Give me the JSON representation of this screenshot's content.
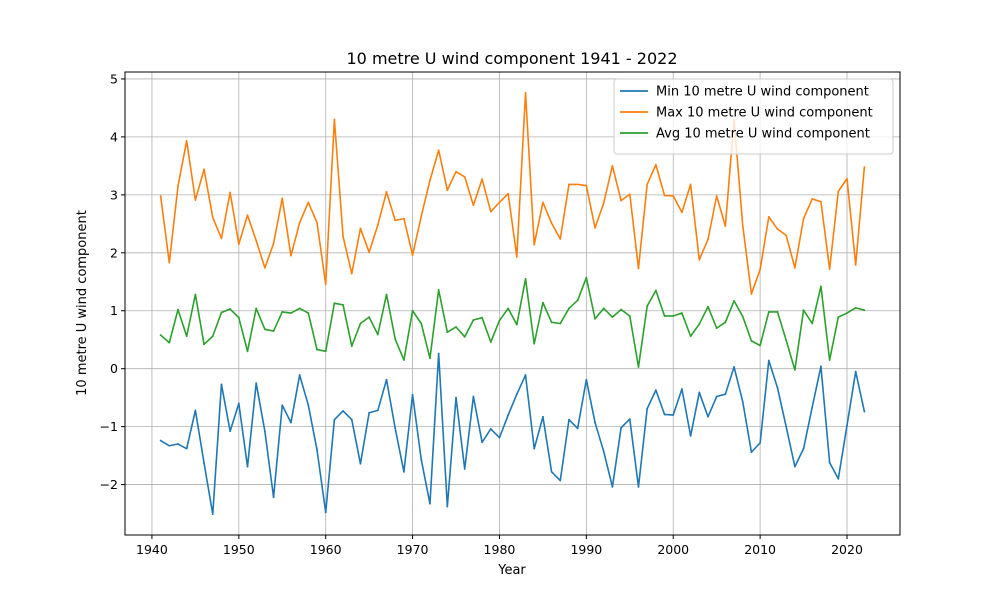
{
  "chart_data": {
    "type": "line",
    "title": "10 metre U wind component 1941 - 2022",
    "xlabel": "Year",
    "ylabel": "10 metre U wind component",
    "xlim": [
      1936.9,
      2026.1
    ],
    "ylim": [
      -2.87,
      5.12
    ],
    "x_ticks": [
      1940,
      1950,
      1960,
      1970,
      1980,
      1990,
      2000,
      2010,
      2020
    ],
    "y_ticks": [
      -2,
      -1,
      0,
      1,
      2,
      3,
      4,
      5
    ],
    "y_tick_labels": [
      "−2",
      "−1",
      "0",
      "1",
      "2",
      "3",
      "4",
      "5"
    ],
    "grid": true,
    "legend_position": "top-right",
    "x": [
      1941,
      1942,
      1943,
      1944,
      1945,
      1946,
      1947,
      1948,
      1949,
      1950,
      1951,
      1952,
      1953,
      1954,
      1955,
      1956,
      1957,
      1958,
      1959,
      1960,
      1961,
      1962,
      1963,
      1964,
      1965,
      1966,
      1967,
      1968,
      1969,
      1970,
      1971,
      1972,
      1973,
      1974,
      1975,
      1976,
      1977,
      1978,
      1979,
      1980,
      1981,
      1982,
      1983,
      1984,
      1985,
      1986,
      1987,
      1988,
      1989,
      1990,
      1991,
      1992,
      1993,
      1994,
      1995,
      1996,
      1997,
      1998,
      1999,
      2000,
      2001,
      2002,
      2003,
      2004,
      2005,
      2006,
      2007,
      2008,
      2009,
      2010,
      2011,
      2012,
      2013,
      2014,
      2015,
      2016,
      2017,
      2018,
      2019,
      2020,
      2021,
      2022
    ],
    "series": [
      {
        "name": "Min 10 metre U wind component",
        "color": "#1f77b4",
        "values": [
          -1.24,
          -1.33,
          -1.3,
          -1.38,
          -0.72,
          -1.63,
          -2.51,
          -0.27,
          -1.08,
          -0.6,
          -1.69,
          -0.25,
          -1.08,
          -2.22,
          -0.63,
          -0.93,
          -0.11,
          -0.63,
          -1.4,
          -2.48,
          -0.88,
          -0.73,
          -0.88,
          -1.64,
          -0.76,
          -0.72,
          -0.19,
          -1.03,
          -1.78,
          -0.45,
          -1.57,
          -2.33,
          0.26,
          -2.38,
          -0.5,
          -1.73,
          -0.48,
          -1.27,
          -1.04,
          -1.19,
          -0.8,
          -0.44,
          -0.11,
          -1.38,
          -0.83,
          -1.78,
          -1.93,
          -0.88,
          -1.03,
          -0.19,
          -0.93,
          -1.43,
          -2.04,
          -1.02,
          -0.87,
          -2.04,
          -0.69,
          -0.37,
          -0.79,
          -0.8,
          -0.35,
          -1.16,
          -0.41,
          -0.83,
          -0.48,
          -0.44,
          0.03,
          -0.57,
          -1.44,
          -1.28,
          0.14,
          -0.33,
          -1.0,
          -1.69,
          -1.38,
          -0.66,
          0.04,
          -1.62,
          -1.9,
          -0.98,
          -0.05,
          -0.74
        ]
      },
      {
        "name": "Max 10 metre U wind component",
        "color": "#ff7f0e",
        "values": [
          2.98,
          1.83,
          3.15,
          3.93,
          2.91,
          3.44,
          2.61,
          2.25,
          3.04,
          2.15,
          2.65,
          2.21,
          1.74,
          2.16,
          2.94,
          1.95,
          2.52,
          2.87,
          2.52,
          1.46,
          4.3,
          2.28,
          1.64,
          2.42,
          2.01,
          2.48,
          3.05,
          2.56,
          2.59,
          1.96,
          2.63,
          3.25,
          3.77,
          3.08,
          3.4,
          3.31,
          2.82,
          3.27,
          2.71,
          2.87,
          3.02,
          1.93,
          4.76,
          2.14,
          2.87,
          2.51,
          2.24,
          3.18,
          3.18,
          3.16,
          2.43,
          2.86,
          3.5,
          2.9,
          3.01,
          1.73,
          3.18,
          3.52,
          2.99,
          2.98,
          2.7,
          3.18,
          1.88,
          2.23,
          2.98,
          2.46,
          4.3,
          2.47,
          1.29,
          1.71,
          2.62,
          2.41,
          2.3,
          1.74,
          2.59,
          2.93,
          2.88,
          1.72,
          3.06,
          3.28,
          1.79,
          3.48
        ]
      },
      {
        "name": "Avg 10 metre U wind component",
        "color": "#2ca02c",
        "values": [
          0.58,
          0.45,
          1.02,
          0.56,
          1.28,
          0.42,
          0.56,
          0.97,
          1.03,
          0.88,
          0.3,
          1.04,
          0.68,
          0.65,
          0.98,
          0.96,
          1.04,
          0.96,
          0.33,
          0.3,
          1.13,
          1.1,
          0.39,
          0.78,
          0.89,
          0.59,
          1.28,
          0.51,
          0.15,
          1.0,
          0.78,
          0.18,
          1.36,
          0.63,
          0.72,
          0.55,
          0.84,
          0.88,
          0.46,
          0.83,
          1.04,
          0.76,
          1.55,
          0.43,
          1.14,
          0.8,
          0.78,
          1.04,
          1.18,
          1.57,
          0.86,
          1.04,
          0.89,
          1.02,
          0.91,
          0.03,
          1.08,
          1.35,
          0.91,
          0.91,
          0.96,
          0.56,
          0.77,
          1.07,
          0.7,
          0.8,
          1.17,
          0.9,
          0.48,
          0.4,
          0.98,
          0.98,
          0.49,
          -0.02,
          1.01,
          0.78,
          1.42,
          0.15,
          0.89,
          0.96,
          1.05,
          1.01
        ]
      }
    ]
  }
}
